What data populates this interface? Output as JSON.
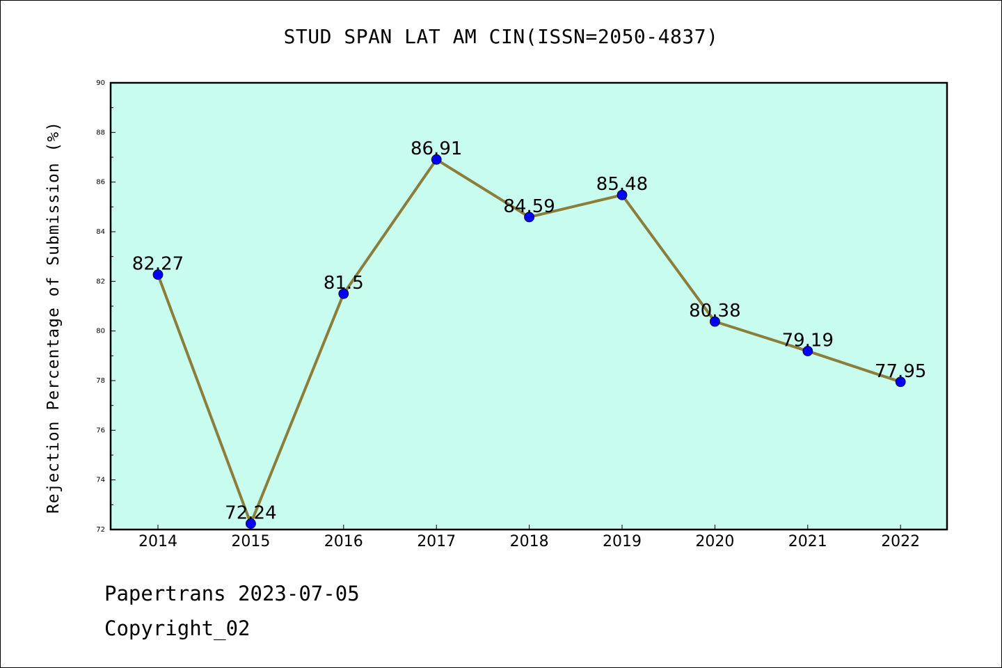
{
  "chart_data": {
    "type": "line",
    "title": "STUD SPAN LAT AM CIN(ISSN=2050-4837)",
    "xlabel": "",
    "ylabel": "Rejection Percentage of Submission (%)",
    "categories": [
      "2014",
      "2015",
      "2016",
      "2017",
      "2018",
      "2019",
      "2020",
      "2021",
      "2022"
    ],
    "series": [
      {
        "values": [
          82.27,
          72.24,
          81.5,
          86.91,
          84.59,
          85.48,
          80.38,
          79.19,
          77.95
        ],
        "labels": [
          "82.27",
          "72.24",
          "81.5",
          "86.91",
          "84.59",
          "85.48",
          "80.38",
          "79.19",
          "77.95"
        ]
      }
    ],
    "ylim": [
      72,
      90
    ],
    "yticks": [
      "72",
      "74",
      "76",
      "78",
      "80",
      "82",
      "84",
      "86",
      "88",
      "90"
    ],
    "grid": false,
    "legend": "none",
    "colors": {
      "plot_background": "#c8fcee",
      "line": "#8b7d3a",
      "marker": "#0000ff",
      "axes": "#000000"
    }
  },
  "footer": {
    "line1": "Papertrans 2023-07-05",
    "line2": "Copyright_02"
  }
}
